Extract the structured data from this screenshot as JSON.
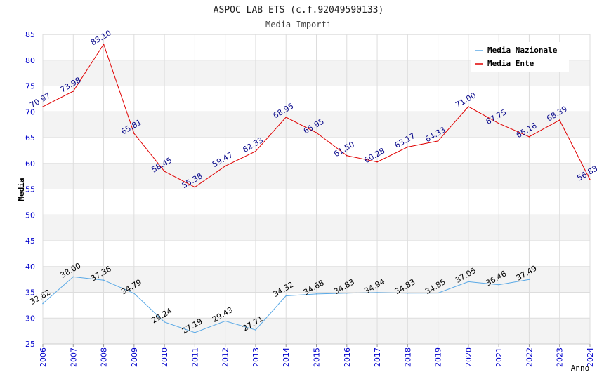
{
  "chart_data": {
    "type": "line",
    "title": "ASPOC LAB ETS (c.f.92049590133)",
    "subtitle": "Media Importi",
    "xlabel": "Anno",
    "ylabel": "Media",
    "ylim": [
      25,
      85
    ],
    "yticks": [
      25,
      30,
      35,
      40,
      45,
      50,
      55,
      60,
      65,
      70,
      75,
      80,
      85
    ],
    "x": [
      2006,
      2007,
      2008,
      2009,
      2010,
      2011,
      2012,
      2013,
      2014,
      2015,
      2016,
      2017,
      2018,
      2019,
      2020,
      2021,
      2022,
      2023,
      2024
    ],
    "grid": true,
    "legend_position": "top-right",
    "series": [
      {
        "name": "Media Nazionale",
        "color": "#5aa9e6",
        "label_color": "#000000",
        "values": [
          32.82,
          38.0,
          37.36,
          34.79,
          29.24,
          27.19,
          29.43,
          27.71,
          34.32,
          34.68,
          34.83,
          34.94,
          34.83,
          34.85,
          37.05,
          36.46,
          37.49,
          null,
          null
        ],
        "labels": [
          "32.82",
          "38.00",
          "37.36",
          "34.79",
          "29.24",
          "27.19",
          "29.43",
          "27.71",
          "34.32",
          "34.68",
          "34.83",
          "34.94",
          "34.83",
          "34.85",
          "37.05",
          "36.46",
          "37.49",
          null,
          null
        ]
      },
      {
        "name": "Media Ente",
        "color": "#e00000",
        "label_color": "#0a0a8c",
        "values": [
          70.97,
          73.98,
          83.1,
          65.81,
          58.45,
          55.38,
          59.47,
          62.33,
          68.95,
          65.95,
          61.5,
          60.28,
          63.17,
          64.33,
          71.0,
          67.75,
          65.16,
          68.39,
          56.83
        ],
        "labels": [
          "70.97",
          "73.98",
          "83.10",
          "65.81",
          "58.45",
          "55.38",
          "59.47",
          "62.33",
          "68.95",
          "65.95",
          "61.50",
          "60.28",
          "63.17",
          "64.33",
          "71.00",
          "67.75",
          "65.16",
          "68.39",
          "56.83"
        ]
      }
    ]
  },
  "colors": {
    "axis_tick_text": "#0000cc",
    "band": "#f3f3f3",
    "gridline": "#dddddd"
  }
}
